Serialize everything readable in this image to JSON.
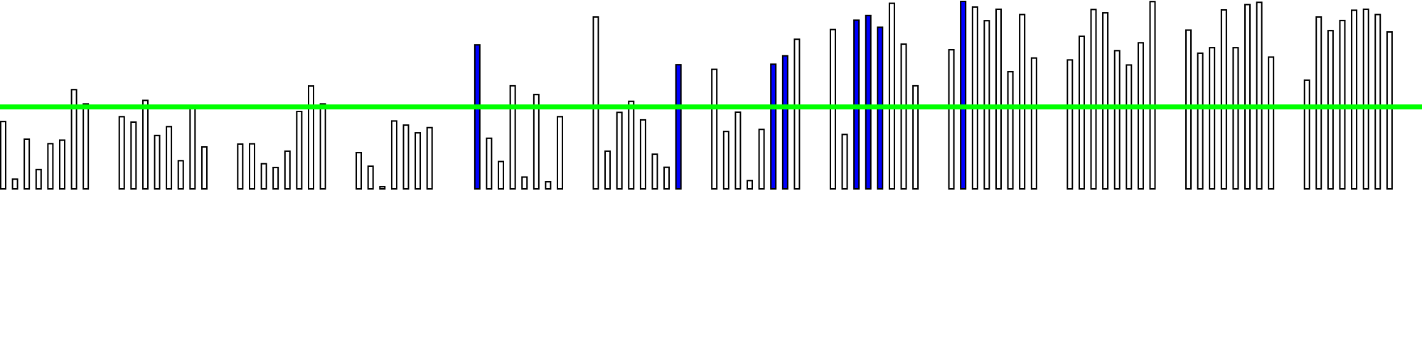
{
  "chart_data": {
    "type": "bar",
    "title": "",
    "xlabel": "",
    "ylabel": "",
    "ylim": [
      0,
      1
    ],
    "grid": false,
    "legend": "none",
    "colors": {
      "default_fill": "#ffffff",
      "highlight_fill": "#0000ff",
      "bar_stroke": "#000000",
      "reference_line": "#00ff00"
    },
    "reference_line": {
      "value": 0.437
    },
    "groups": [
      {
        "values": [
          0.359,
          0.052,
          0.265,
          0.103,
          0.241,
          0.26,
          0.529,
          0.453
        ],
        "highlight": []
      },
      {
        "values": [
          0.385,
          0.356,
          0.472,
          0.285,
          0.332,
          0.15,
          0.43,
          0.224
        ],
        "highlight": []
      },
      {
        "values": [
          0.239,
          0.24,
          0.134,
          0.114,
          0.201,
          0.413,
          0.549,
          0.453
        ],
        "highlight": []
      },
      {
        "values": [
          0.193,
          0.121,
          0.011,
          0.362,
          0.34,
          0.299,
          0.327
        ],
        "highlight": []
      },
      {
        "values": [
          0.768,
          0.27,
          0.146,
          0.55,
          0.063,
          0.503,
          0.038,
          0.385
        ],
        "highlight": [
          0
        ]
      },
      {
        "values": [
          0.917,
          0.201,
          0.408,
          0.467,
          0.368,
          0.185,
          0.115,
          0.662
        ],
        "highlight": [
          7
        ]
      },
      {
        "values": [
          0.638,
          0.306,
          0.409,
          0.044,
          0.317,
          0.665,
          0.71,
          0.798
        ],
        "highlight": [
          5,
          6
        ]
      },
      {
        "values": [
          0.85,
          0.29,
          0.9,
          0.925,
          0.862,
          0.99,
          0.772,
          0.55
        ],
        "highlight": [
          2,
          3,
          4
        ]
      },
      {
        "values": [
          0.742,
          1.0,
          0.97,
          0.897,
          0.958,
          0.625,
          0.93,
          0.698
        ],
        "highlight": [
          1
        ]
      },
      {
        "values": [
          0.688,
          0.814,
          0.957,
          0.939,
          0.737,
          0.661,
          0.779,
          0.999
        ],
        "highlight": []
      },
      {
        "values": [
          0.847,
          0.724,
          0.753,
          0.955,
          0.753,
          0.983,
          0.995,
          0.703
        ],
        "highlight": []
      },
      {
        "values": [
          0.58,
          0.917,
          0.844,
          0.898,
          0.953,
          0.958,
          0.93,
          0.837
        ],
        "highlight": []
      }
    ]
  }
}
